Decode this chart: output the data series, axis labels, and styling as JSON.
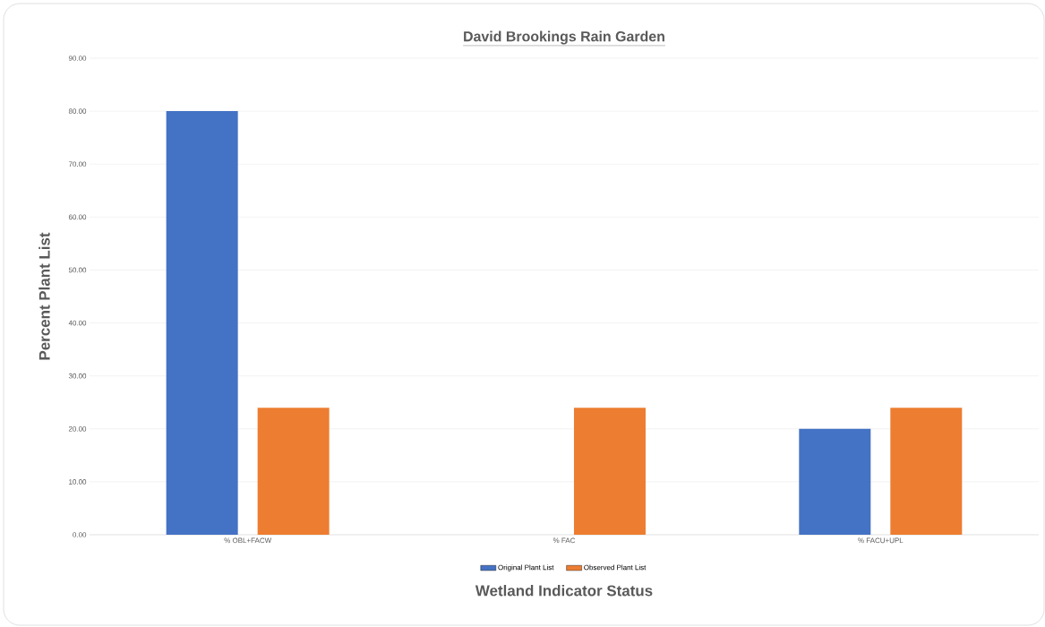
{
  "chart_data": {
    "type": "bar",
    "title": "David Brookings Rain Garden",
    "xlabel": "Wetland Indicator Status",
    "ylabel": "Percent Plant List",
    "categories": [
      "% OBL+FACW",
      "% FAC",
      "% FACU+UPL"
    ],
    "series": [
      {
        "name": "Original Plant List",
        "color": "#4472c4",
        "values": [
          80,
          0,
          20
        ]
      },
      {
        "name": "Observed Plant List",
        "color": "#ed7d31",
        "values": [
          24,
          24,
          24
        ]
      }
    ],
    "ylim": [
      0,
      90
    ],
    "yticks": [
      {
        "value": 0,
        "label": "0.00"
      },
      {
        "value": 10,
        "label": "10.00"
      },
      {
        "value": 20,
        "label": "20.00"
      },
      {
        "value": 30,
        "label": "30.00"
      },
      {
        "value": 40,
        "label": "40.00"
      },
      {
        "value": 50,
        "label": "50.00"
      },
      {
        "value": 60,
        "label": "60.00"
      },
      {
        "value": 70,
        "label": "70.00"
      },
      {
        "value": 80,
        "label": "80.00"
      },
      {
        "value": 90,
        "label": "90.00"
      }
    ],
    "grid": "y",
    "legend": "bottom"
  }
}
